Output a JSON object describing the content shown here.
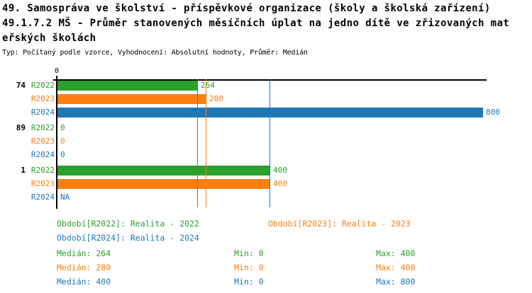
{
  "header": {
    "title_line1": "49. Samospráva ve školství - příspěvkové organizace (školy a školská zařízení)",
    "title_line2": "49.1.7.2 MŠ - Průměr stanovených měsíčních úplat na jedno dítě ve zřizovaných mat",
    "title_line3": "eřských školách",
    "meta": "Typ: Počítaný podle vzorce, Vyhodnocení: Absolutní hodnoty, Průměr: Medián"
  },
  "colors": {
    "green": "#2ca02c",
    "orange": "#ff7f0e",
    "blue": "#1f77b4",
    "axis": "#000000",
    "background": "#ffffff"
  },
  "chart_data": {
    "type": "bar",
    "orientation": "horizontal",
    "title": "49.1.7.2 MŠ - Průměr stanovených měsíčních úplat na jedno dítě ve zřizovaných mateřských školách",
    "x_origin_label": "0",
    "axis_range": [
      0,
      806
    ],
    "grid": false,
    "series_keys": [
      "R2022",
      "R2023",
      "R2024"
    ],
    "series_colors": {
      "R2022": "#2ca02c",
      "R2023": "#ff7f0e",
      "R2024": "#1f77b4"
    },
    "groups": [
      {
        "label": "74",
        "bars": [
          {
            "series": "R2022",
            "value": 264,
            "display": "264"
          },
          {
            "series": "R2023",
            "value": 280,
            "display": "280"
          },
          {
            "series": "R2024",
            "value": 800,
            "display": "800"
          }
        ]
      },
      {
        "label": "89",
        "bars": [
          {
            "series": "R2022",
            "value": 0,
            "display": "0"
          },
          {
            "series": "R2023",
            "value": 0,
            "display": "0"
          },
          {
            "series": "R2024",
            "value": 0,
            "display": "0"
          }
        ]
      },
      {
        "label": "1",
        "bars": [
          {
            "series": "R2022",
            "value": 400,
            "display": "400"
          },
          {
            "series": "R2023",
            "value": 400,
            "display": "400"
          },
          {
            "series": "R2024",
            "value": null,
            "display": "NA"
          }
        ]
      }
    ],
    "median_lines": [
      {
        "series": "R2022",
        "value": 264
      },
      {
        "series": "R2023",
        "value": 280
      },
      {
        "series": "R2024",
        "value": 400
      }
    ],
    "stats": [
      {
        "series": "R2022",
        "median": 264,
        "min": 0,
        "max": 400
      },
      {
        "series": "R2023",
        "median": 280,
        "min": 0,
        "max": 400
      },
      {
        "series": "R2024",
        "median": 400,
        "min": 0,
        "max": 800
      }
    ]
  },
  "legend": {
    "r2022": "Období[R2022]: Realita - 2022",
    "r2023": "Období[R2023]: Realita - 2023",
    "r2024": "Období[R2024]: Realita - 2024"
  },
  "stats_rows": {
    "green": {
      "median": "Medián: 264",
      "min": "Min: 0",
      "max": "Max: 400"
    },
    "orange": {
      "median": "Medián: 280",
      "min": "Min: 0",
      "max": "Max: 400"
    },
    "blue": {
      "median": "Medián: 400",
      "min": "Min: 0",
      "max": "Max: 800"
    }
  }
}
